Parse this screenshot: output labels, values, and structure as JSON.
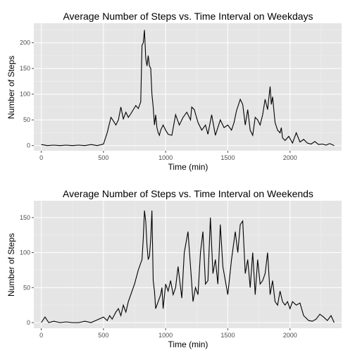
{
  "colors": {
    "panel": "#e5e5e5",
    "grid_major": "#ffffff",
    "grid_minor": "#f2f2f2",
    "line": "#000000",
    "tick": "#4d4d4d"
  },
  "chart_data": [
    {
      "type": "line",
      "title": "Average Number of Steps vs. Time Interval on Weekdays",
      "xlabel": "Time (min)",
      "ylabel": "Number of Steps",
      "xlim": [
        -60,
        2415
      ],
      "ylim": [
        -10,
        238
      ],
      "xticks": [
        0,
        500,
        1000,
        1500,
        2000
      ],
      "yticks": [
        0,
        50,
        100,
        150,
        200
      ],
      "grid": true,
      "series": [
        {
          "x": [
            0,
            50,
            100,
            150,
            200,
            250,
            300,
            350,
            400,
            450,
            500,
            530,
            560,
            580,
            600,
            620,
            640,
            660,
            680,
            700,
            720,
            740,
            760,
            780,
            800,
            810,
            820,
            830,
            840,
            850,
            860,
            870,
            880,
            890,
            900,
            910,
            920,
            930,
            940,
            950,
            960,
            980,
            1000,
            1020,
            1050,
            1080,
            1110,
            1140,
            1170,
            1200,
            1210,
            1230,
            1260,
            1290,
            1320,
            1340,
            1370,
            1400,
            1440,
            1470,
            1500,
            1530,
            1550,
            1570,
            1600,
            1620,
            1640,
            1660,
            1680,
            1700,
            1720,
            1740,
            1760,
            1780,
            1800,
            1820,
            1840,
            1850,
            1860,
            1880,
            1900,
            1920,
            1930,
            1940,
            1960,
            1990,
            2020,
            2050,
            2080,
            2110,
            2140,
            2170,
            2200,
            2230,
            2260,
            2290,
            2320,
            2355
          ],
          "y": [
            2,
            0,
            1,
            0,
            1,
            0,
            1,
            0,
            2,
            0,
            3,
            25,
            55,
            48,
            40,
            50,
            75,
            52,
            65,
            55,
            62,
            70,
            78,
            72,
            85,
            195,
            200,
            225,
            170,
            155,
            175,
            155,
            150,
            100,
            75,
            40,
            60,
            35,
            25,
            20,
            30,
            40,
            30,
            22,
            20,
            60,
            40,
            55,
            65,
            50,
            75,
            70,
            45,
            30,
            40,
            22,
            60,
            20,
            50,
            35,
            40,
            30,
            45,
            68,
            90,
            80,
            40,
            70,
            30,
            20,
            55,
            50,
            40,
            60,
            90,
            70,
            115,
            80,
            95,
            45,
            30,
            25,
            35,
            15,
            10,
            18,
            5,
            25,
            7,
            12,
            5,
            3,
            8,
            2,
            3,
            1,
            4,
            0
          ]
        }
      ]
    },
    {
      "type": "line",
      "title": "Average Number of Steps vs. Time Interval on Weekends",
      "xlabel": "Time (min)",
      "ylabel": "Number of Steps",
      "xlim": [
        -60,
        2415
      ],
      "ylim": [
        -8,
        174
      ],
      "xticks": [
        0,
        500,
        1000,
        1500,
        2000
      ],
      "yticks": [
        0,
        50,
        100,
        150
      ],
      "grid": true,
      "series": [
        {
          "x": [
            0,
            30,
            60,
            100,
            150,
            200,
            250,
            300,
            350,
            400,
            450,
            500,
            530,
            550,
            570,
            600,
            620,
            640,
            660,
            680,
            700,
            720,
            750,
            780,
            800,
            810,
            820,
            830,
            840,
            850,
            860,
            870,
            880,
            890,
            900,
            910,
            920,
            940,
            960,
            970,
            980,
            1000,
            1020,
            1040,
            1060,
            1080,
            1100,
            1130,
            1150,
            1180,
            1200,
            1220,
            1240,
            1260,
            1280,
            1300,
            1320,
            1340,
            1360,
            1380,
            1400,
            1420,
            1440,
            1460,
            1480,
            1500,
            1530,
            1560,
            1580,
            1600,
            1620,
            1640,
            1660,
            1680,
            1700,
            1720,
            1740,
            1760,
            1780,
            1800,
            1820,
            1840,
            1860,
            1880,
            1900,
            1920,
            1940,
            1960,
            1980,
            2000,
            2020,
            2050,
            2080,
            2110,
            2150,
            2180,
            2210,
            2240,
            2270,
            2300,
            2330,
            2355
          ],
          "y": [
            0,
            8,
            0,
            2,
            0,
            1,
            0,
            0,
            2,
            0,
            4,
            8,
            3,
            10,
            5,
            15,
            20,
            10,
            25,
            15,
            30,
            40,
            55,
            75,
            85,
            90,
            120,
            160,
            145,
            110,
            90,
            95,
            120,
            160,
            60,
            45,
            20,
            30,
            40,
            50,
            20,
            55,
            45,
            60,
            40,
            50,
            80,
            35,
            100,
            130,
            80,
            30,
            50,
            40,
            100,
            130,
            55,
            60,
            150,
            70,
            90,
            55,
            140,
            80,
            60,
            40,
            90,
            130,
            100,
            140,
            145,
            70,
            90,
            50,
            100,
            40,
            90,
            55,
            60,
            70,
            100,
            40,
            60,
            30,
            25,
            45,
            30,
            25,
            30,
            20,
            30,
            25,
            28,
            10,
            3,
            2,
            5,
            12,
            8,
            3,
            10,
            0
          ]
        }
      ]
    }
  ]
}
